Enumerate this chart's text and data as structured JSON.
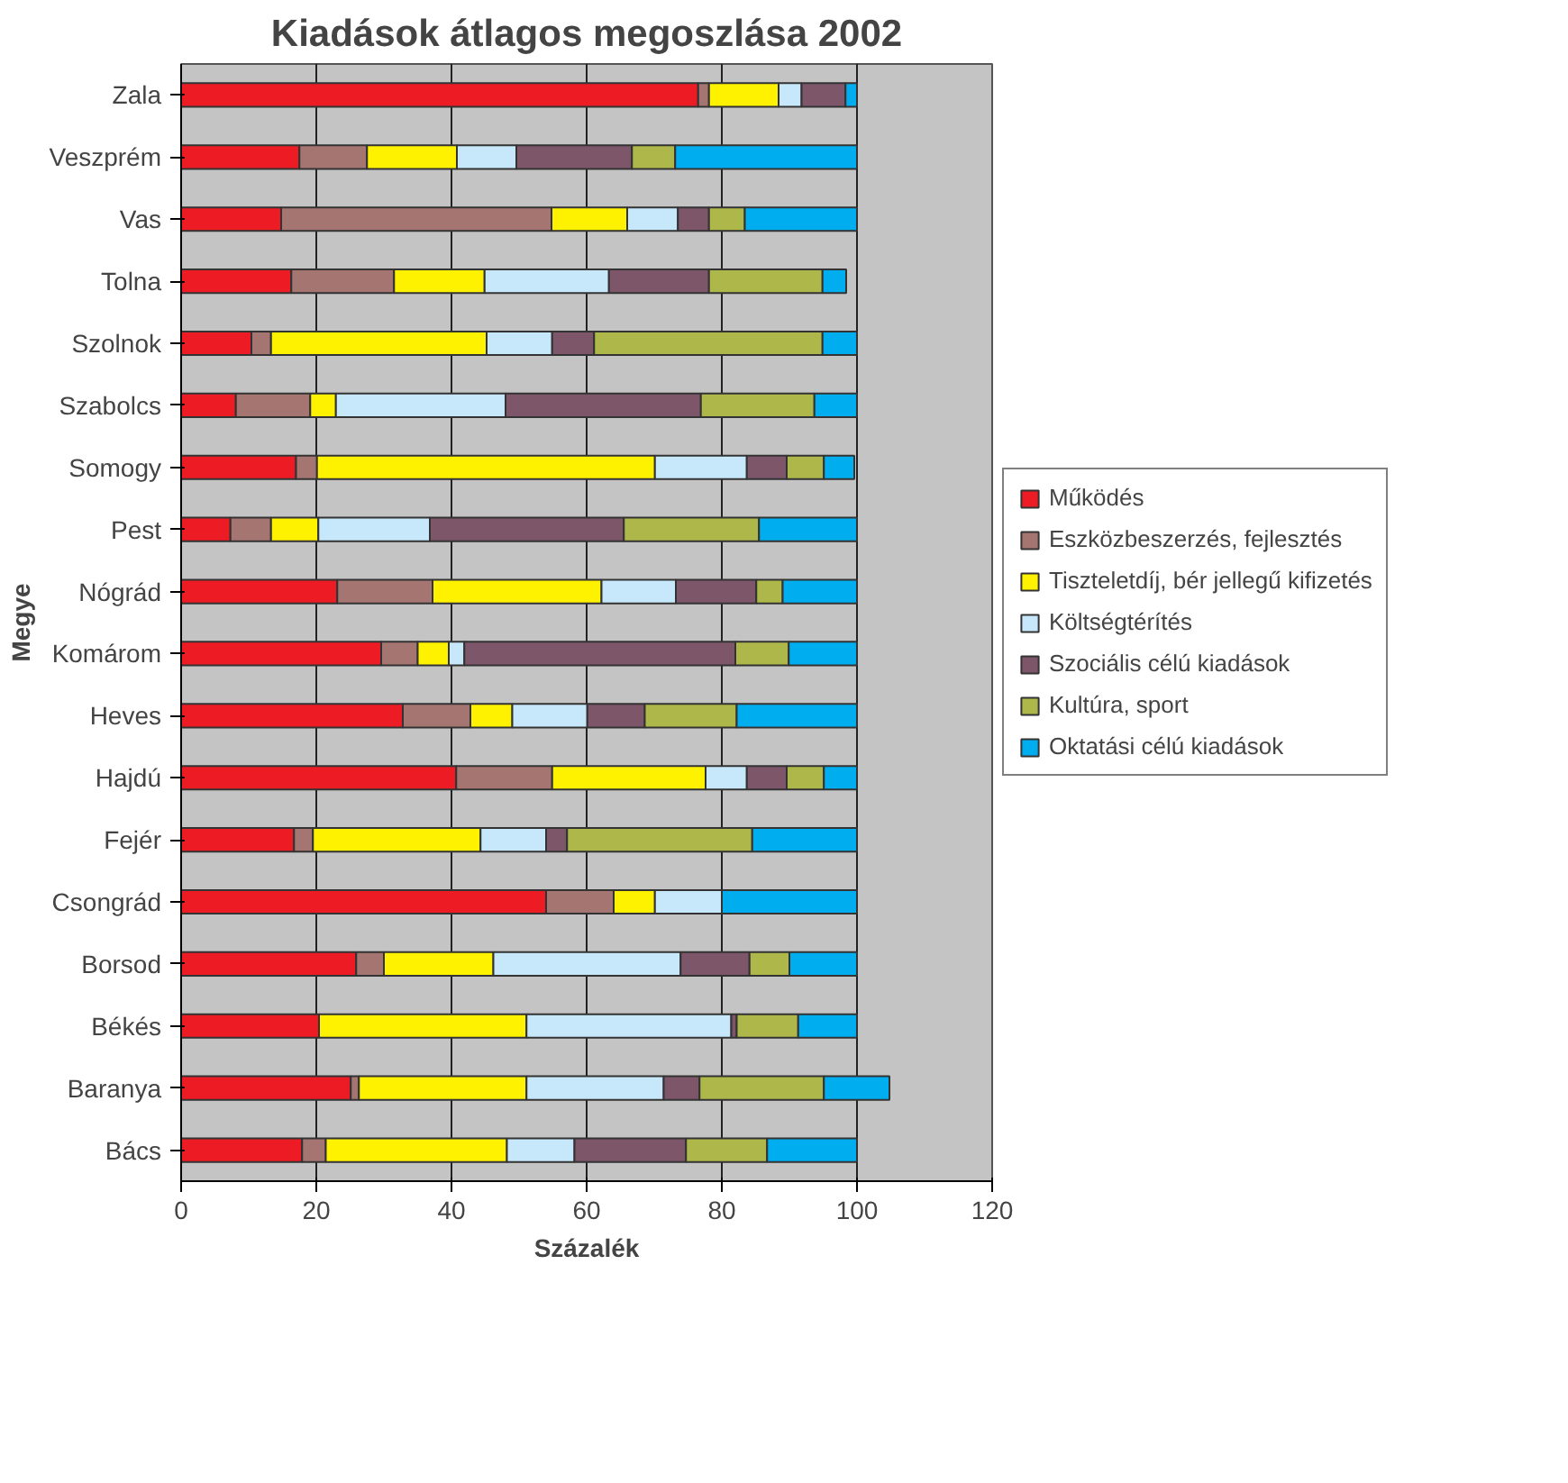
{
  "chart_data": {
    "type": "bar",
    "orientation": "horizontal",
    "stacked": true,
    "title": "Kiadások átlagos megoszlása 2002",
    "xlabel": "Százalék",
    "ylabel": "Megye",
    "categories": [
      "Zala",
      "Veszprém",
      "Vas",
      "Tolna",
      "Szolnok",
      "Szabolcs",
      "Somogy",
      "Pest",
      "Nógrád",
      "Komárom",
      "Heves",
      "Hajdú",
      "Fejér",
      "Csongrád",
      "Borsod",
      "Békés",
      "Baranya",
      "Bács"
    ],
    "series": [
      {
        "name": "Működés",
        "color": "#ed1c24",
        "values": [
          76.5,
          17.5,
          14.8,
          16.3,
          10.4,
          8.1,
          17,
          7.3,
          23.1,
          29.6,
          32.8,
          40.7,
          16.7,
          54,
          25.9,
          20.4,
          25.1,
          17.9
        ]
      },
      {
        "name": "Eszközbeszerzés, fejlesztés",
        "color": "#a57572",
        "values": [
          1.6,
          10,
          40,
          15.2,
          2.9,
          11,
          3.1,
          6,
          14.1,
          5.4,
          10,
          14.2,
          2.8,
          10,
          4.1,
          0,
          1.2,
          3.5
        ]
      },
      {
        "name": "Tiszteletdíj, bér jellegű kifizetés",
        "color": "#fff200",
        "values": [
          10.3,
          13.3,
          11.2,
          13.4,
          31.9,
          3.8,
          50,
          7,
          25,
          4.6,
          6.2,
          22.7,
          24.8,
          6.1,
          16.2,
          30.7,
          24.8,
          26.8
        ]
      },
      {
        "name": "Költségtérítés",
        "color": "#c6e8fa",
        "values": [
          3.4,
          8.8,
          7.5,
          18.4,
          9.7,
          25.1,
          13.6,
          16.5,
          11,
          2.3,
          11.1,
          6.1,
          9.7,
          9.9,
          27.7,
          30.3,
          20.3,
          10
        ]
      },
      {
        "name": "Szociális célú kiadások",
        "color": "#7d566a",
        "values": [
          6.5,
          17.1,
          4.6,
          14.8,
          6.2,
          28.9,
          5.9,
          28.7,
          11.9,
          40.1,
          8.5,
          5.9,
          3.1,
          0,
          10.2,
          0.8,
          5.3,
          16.5
        ]
      },
      {
        "name": "Kultúra, sport",
        "color": "#aeb84a",
        "values": [
          0,
          6.4,
          5.3,
          16.8,
          33.8,
          16.8,
          5.5,
          20,
          3.9,
          7.9,
          13.6,
          5.5,
          27.4,
          0,
          5.9,
          9.1,
          18.4,
          12
        ]
      },
      {
        "name": "Oktatási célú kiadások",
        "color": "#00aeef",
        "values": [
          1.7,
          26.9,
          16.6,
          3.5,
          5.1,
          6.3,
          4.5,
          14.5,
          11,
          10.1,
          17.8,
          4.9,
          15.5,
          20,
          10,
          8.7,
          9.7,
          13.3
        ]
      }
    ],
    "xlim": [
      0,
      120
    ],
    "xticks": [
      0,
      20,
      40,
      60,
      80,
      100,
      120
    ],
    "grid": "x",
    "legend": "right"
  }
}
